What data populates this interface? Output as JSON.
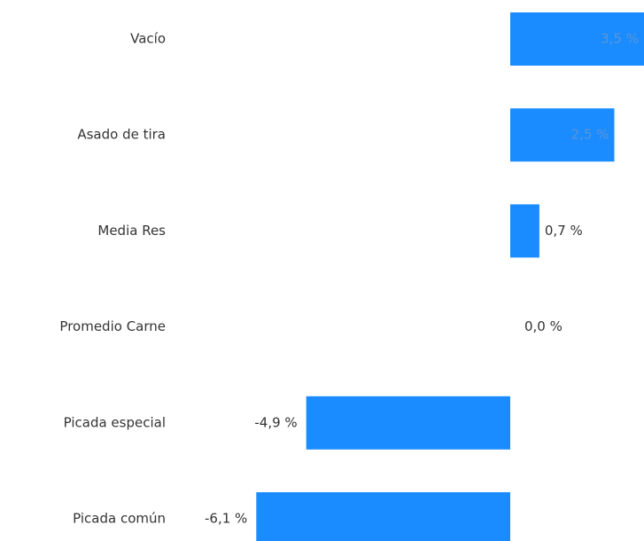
{
  "chart_data": {
    "type": "bar",
    "orientation": "horizontal",
    "color": "#1a8cff",
    "categories": [
      "Vacío",
      "Asado de tira",
      "Media Res",
      "Promedio Carne",
      "Picada especial",
      "Picada común"
    ],
    "values": [
      3.5,
      2.5,
      0.7,
      0.0,
      -4.9,
      -6.1
    ],
    "value_labels": [
      "3,5 %",
      "2,5 %",
      "0,7 %",
      "0,0 %",
      "-4,9 %",
      "-6,1 %"
    ]
  }
}
